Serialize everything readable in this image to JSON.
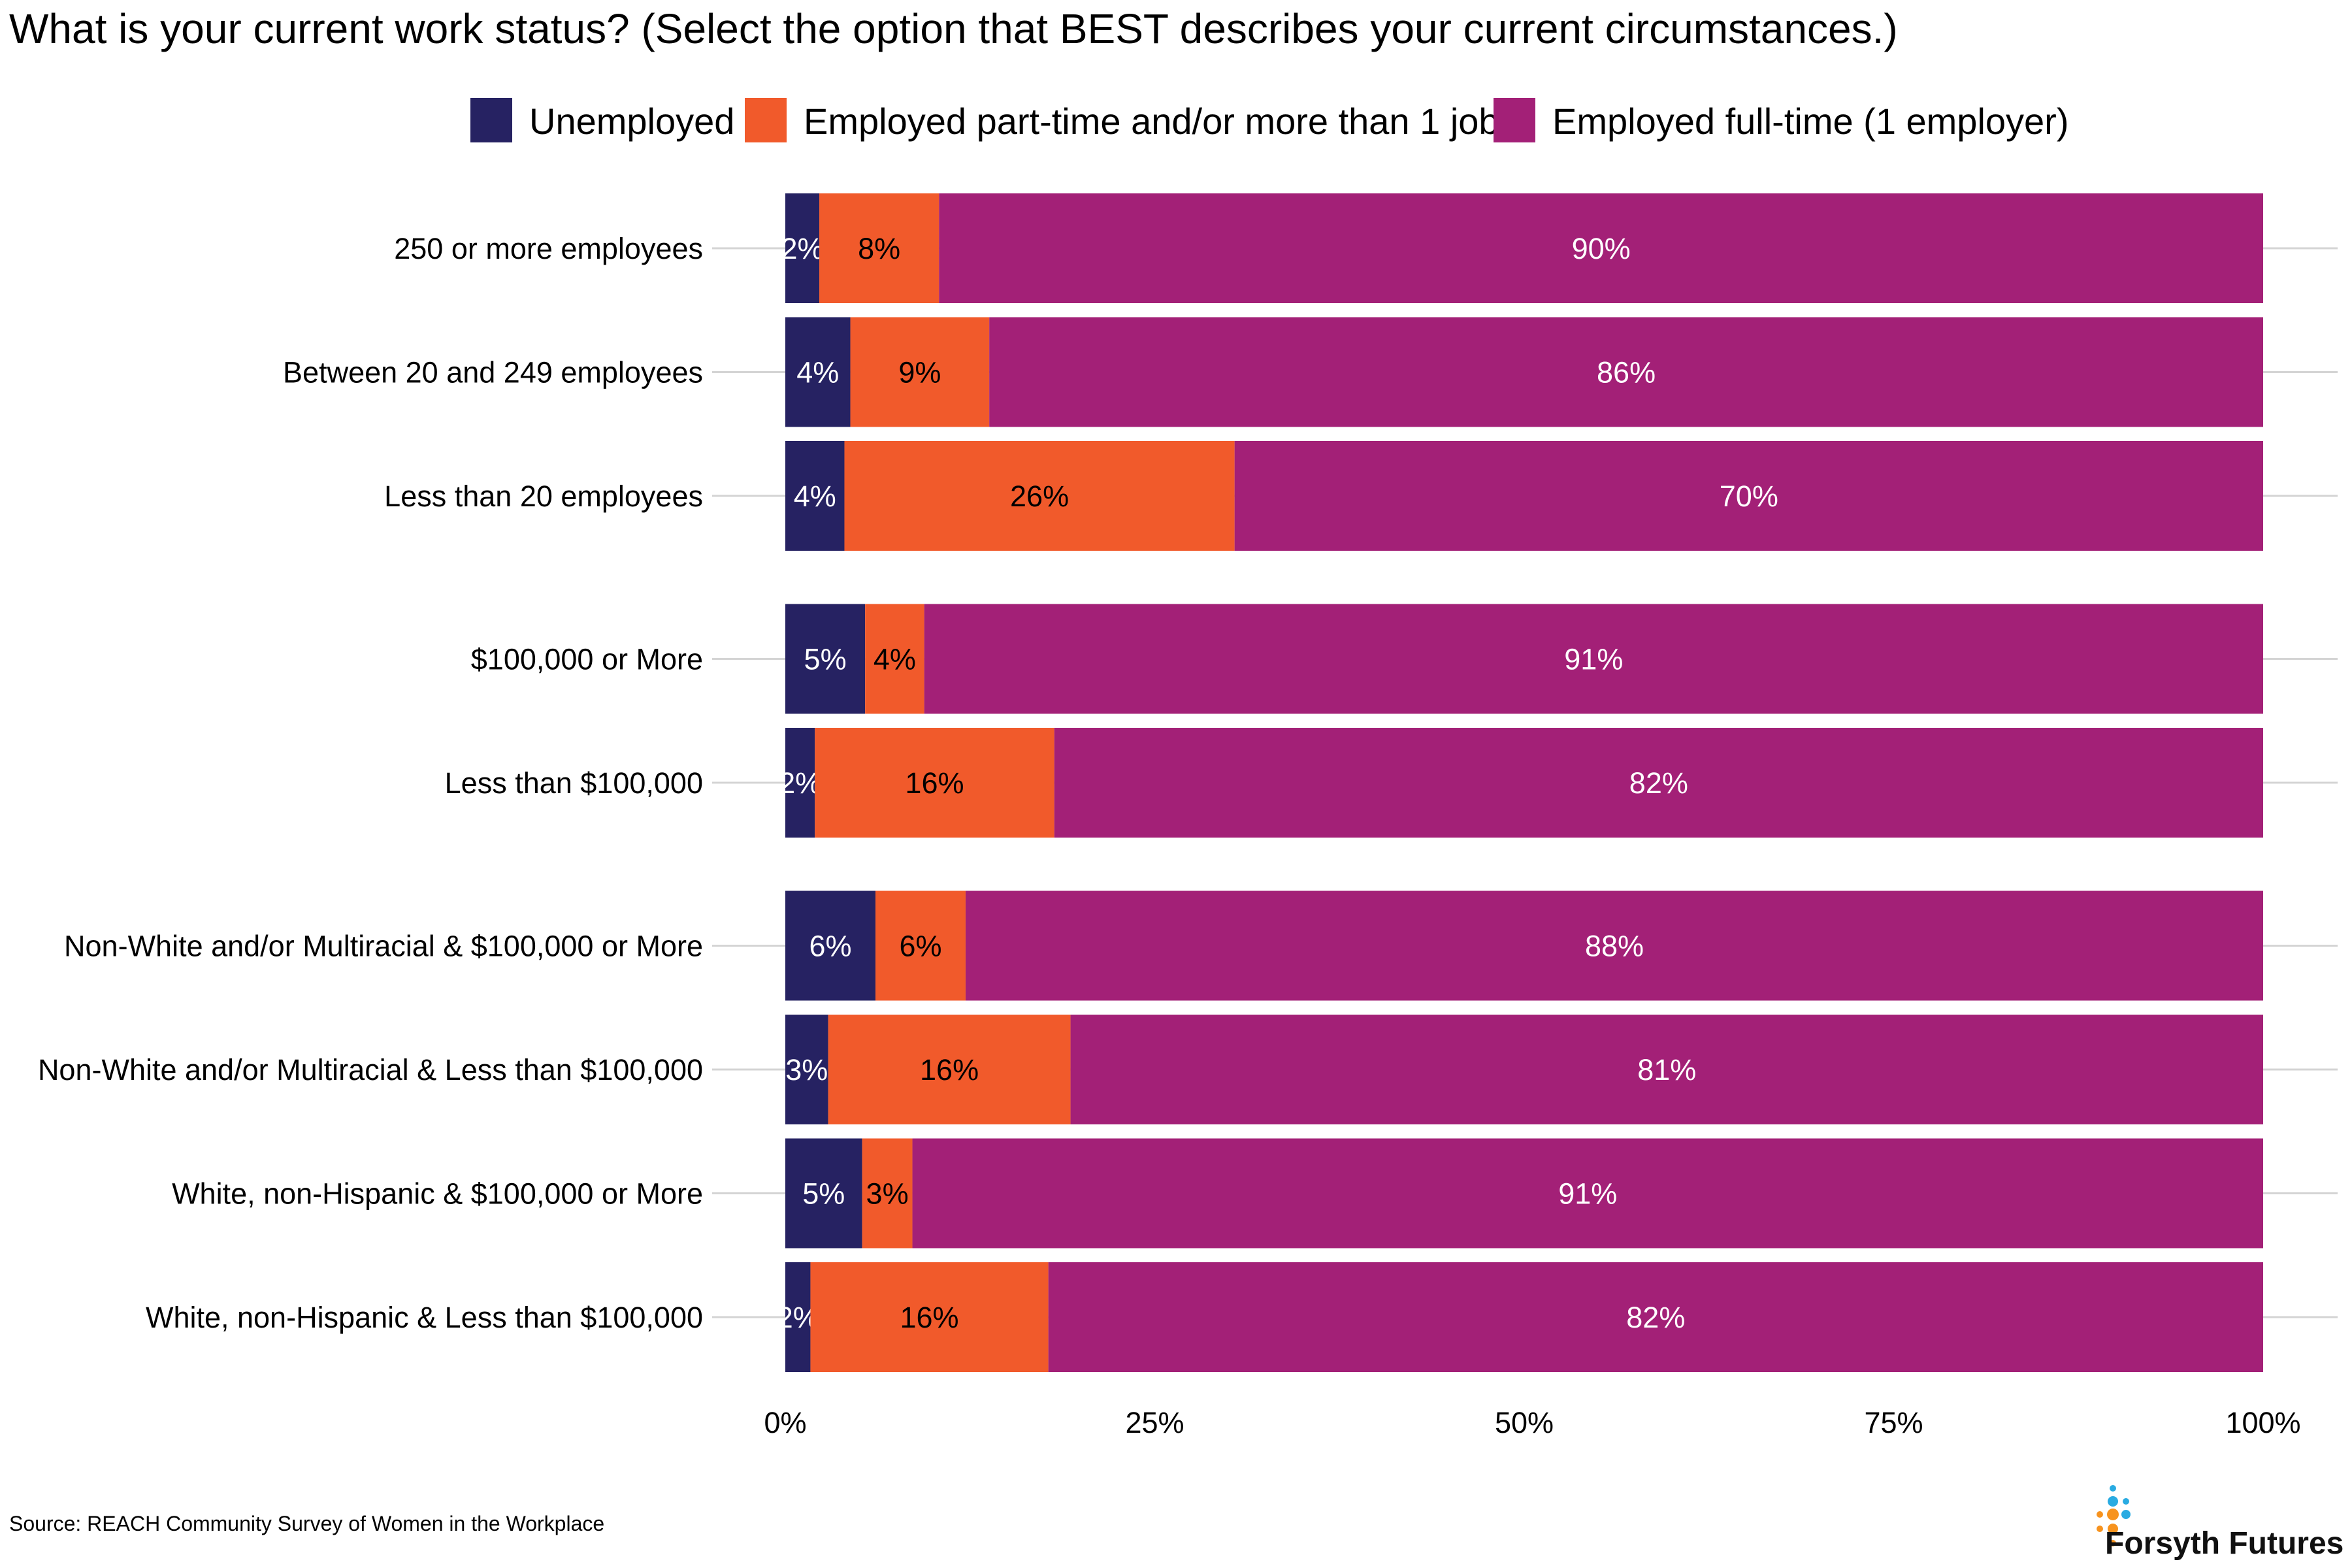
{
  "chart_data": {
    "type": "bar",
    "orientation": "horizontal",
    "stacked": true,
    "title": "What is your current work status? (Select the option that BEST describes your current circumstances.)",
    "categories": [
      "250 or more employees",
      "Between 20 and 249 employees",
      "Less than 20 employees",
      "$100,000 or More",
      "Less than $100,000",
      "Non-White and/or Multiracial & $100,000 or More",
      "Non-White and/or Multiracial & Less than $100,000",
      "White, non-Hispanic & $100,000 or More",
      "White, non-Hispanic & Less than $100,000"
    ],
    "groups": [
      [
        0,
        1,
        2
      ],
      [
        3,
        4
      ],
      [
        5,
        6,
        7,
        8
      ]
    ],
    "series": [
      {
        "name": "Unemployed",
        "color": "#262262",
        "label_color": "#ffffff",
        "values": [
          2.3,
          4.4,
          4.0,
          5.4,
          2.0,
          6.1,
          2.9,
          5.2,
          1.7
        ],
        "labels": [
          "2%",
          "4%",
          "4%",
          "5%",
          "2%",
          "6%",
          "3%",
          "5%",
          "2%"
        ]
      },
      {
        "name": "Employed part-time and/or more than 1 job",
        "color": "#f15a2b",
        "label_color": "#000000",
        "values": [
          8.1,
          9.4,
          26.4,
          4.0,
          16.2,
          6.1,
          16.4,
          3.4,
          16.1
        ],
        "labels": [
          "8%",
          "9%",
          "26%",
          "4%",
          "16%",
          "6%",
          "16%",
          "3%",
          "16%"
        ]
      },
      {
        "name": "Employed full-time (1 employer)",
        "color": "#a32077",
        "label_color": "#ffffff",
        "values": [
          89.6,
          86.2,
          69.6,
          90.6,
          81.8,
          87.8,
          80.7,
          91.4,
          82.2
        ],
        "labels": [
          "90%",
          "86%",
          "70%",
          "91%",
          "82%",
          "88%",
          "81%",
          "91%",
          "82%"
        ]
      }
    ],
    "xlim": [
      0,
      100
    ],
    "xticks": [
      0,
      25,
      50,
      75,
      100
    ],
    "xtick_labels": [
      "0%",
      "25%",
      "50%",
      "75%",
      "100%"
    ],
    "xlabel": "",
    "ylabel": "",
    "grid": true,
    "legend_position": "top"
  },
  "source": "Source: REACH Community Survey of Women in the Workplace",
  "logo": {
    "text": "Forsyth Futures",
    "colors": [
      "#29abe2",
      "#f7931e"
    ]
  }
}
